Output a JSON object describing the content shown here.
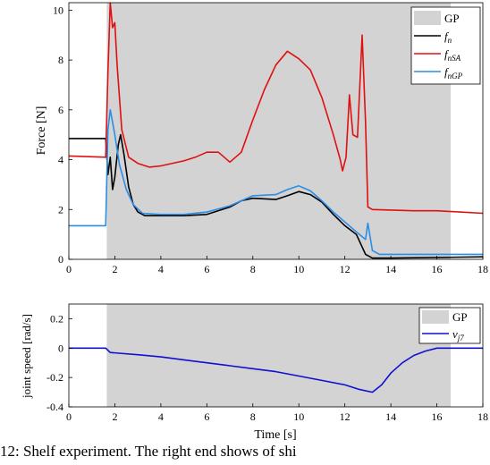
{
  "caption": "12: Shelf experiment. The right end shows of shi",
  "chart_data": [
    {
      "type": "line",
      "title": "",
      "xlabel": "",
      "ylabel": "Force [N]",
      "xlim": [
        0,
        18
      ],
      "ylim": [
        0,
        10.3
      ],
      "xticks": [
        "0",
        "2",
        "4",
        "6",
        "8",
        "10",
        "12",
        "14",
        "16",
        "18"
      ],
      "yticks": [
        "0",
        "2",
        "4",
        "6",
        "8",
        "10"
      ],
      "grid": false,
      "legend_position": "top-right",
      "shaded_region": {
        "label": "GP",
        "x_start": 1.65,
        "x_end": 16.6,
        "color": "#d3d3d3"
      },
      "series": [
        {
          "name": "f_n",
          "label_main": "f",
          "label_sub": "n",
          "color": "#000000",
          "points": [
            [
              0,
              4.85
            ],
            [
              1.6,
              4.85
            ],
            [
              1.7,
              3.4
            ],
            [
              1.8,
              4.1
            ],
            [
              1.9,
              2.8
            ],
            [
              2.0,
              3.3
            ],
            [
              2.15,
              4.6
            ],
            [
              2.25,
              5.0
            ],
            [
              2.4,
              4.2
            ],
            [
              2.6,
              2.9
            ],
            [
              2.8,
              2.2
            ],
            [
              3.0,
              1.9
            ],
            [
              3.3,
              1.75
            ],
            [
              4,
              1.75
            ],
            [
              5,
              1.75
            ],
            [
              6,
              1.8
            ],
            [
              7,
              2.1
            ],
            [
              7.5,
              2.35
            ],
            [
              8,
              2.45
            ],
            [
              9,
              2.4
            ],
            [
              9.5,
              2.55
            ],
            [
              10,
              2.72
            ],
            [
              10.5,
              2.6
            ],
            [
              11,
              2.3
            ],
            [
              11.5,
              1.8
            ],
            [
              12,
              1.35
            ],
            [
              12.5,
              1.0
            ],
            [
              12.9,
              0.2
            ],
            [
              13.2,
              0.05
            ],
            [
              14,
              0.05
            ],
            [
              18,
              0.1
            ]
          ]
        },
        {
          "name": "f_nSA",
          "label_main": "f",
          "label_sub": "nSA",
          "color": "#e01010",
          "points": [
            [
              0,
              4.15
            ],
            [
              1.6,
              4.1
            ],
            [
              1.7,
              7.5
            ],
            [
              1.8,
              10.3
            ],
            [
              1.9,
              9.3
            ],
            [
              2.0,
              9.5
            ],
            [
              2.1,
              7.8
            ],
            [
              2.3,
              5.2
            ],
            [
              2.6,
              4.1
            ],
            [
              3.0,
              3.85
            ],
            [
              3.5,
              3.7
            ],
            [
              4,
              3.75
            ],
            [
              5,
              3.95
            ],
            [
              5.5,
              4.1
            ],
            [
              6,
              4.3
            ],
            [
              6.5,
              4.3
            ],
            [
              7,
              3.9
            ],
            [
              7.5,
              4.3
            ],
            [
              8,
              5.6
            ],
            [
              8.5,
              6.8
            ],
            [
              9,
              7.8
            ],
            [
              9.5,
              8.35
            ],
            [
              10,
              8.05
            ],
            [
              10.5,
              7.6
            ],
            [
              11,
              6.5
            ],
            [
              11.5,
              5.0
            ],
            [
              11.8,
              4.0
            ],
            [
              11.9,
              3.55
            ],
            [
              12.05,
              4.1
            ],
            [
              12.2,
              6.6
            ],
            [
              12.35,
              5.0
            ],
            [
              12.55,
              4.9
            ],
            [
              12.75,
              9.0
            ],
            [
              12.9,
              5.5
            ],
            [
              13.0,
              2.1
            ],
            [
              13.2,
              2.0
            ],
            [
              15,
              1.95
            ],
            [
              16,
              1.95
            ],
            [
              17,
              1.9
            ],
            [
              18,
              1.85
            ]
          ]
        },
        {
          "name": "f_nGP",
          "label_main": "f",
          "label_sub": "nGP",
          "color": "#2b8ee6",
          "points": [
            [
              0,
              1.35
            ],
            [
              1.6,
              1.35
            ],
            [
              1.7,
              5.2
            ],
            [
              1.8,
              6.0
            ],
            [
              1.9,
              5.5
            ],
            [
              2.0,
              5.0
            ],
            [
              2.2,
              3.8
            ],
            [
              2.5,
              2.8
            ],
            [
              2.8,
              2.2
            ],
            [
              3.2,
              1.85
            ],
            [
              4,
              1.8
            ],
            [
              5,
              1.8
            ],
            [
              6,
              1.9
            ],
            [
              7,
              2.15
            ],
            [
              8,
              2.55
            ],
            [
              9,
              2.6
            ],
            [
              9.5,
              2.8
            ],
            [
              10,
              2.95
            ],
            [
              10.5,
              2.75
            ],
            [
              11,
              2.35
            ],
            [
              11.5,
              1.9
            ],
            [
              12,
              1.5
            ],
            [
              12.5,
              1.1
            ],
            [
              12.9,
              0.8
            ],
            [
              13.0,
              1.45
            ],
            [
              13.2,
              0.35
            ],
            [
              13.5,
              0.2
            ],
            [
              16,
              0.2
            ],
            [
              18,
              0.2
            ]
          ]
        }
      ]
    },
    {
      "type": "line",
      "title": "",
      "xlabel": "Time [s]",
      "ylabel": "joint speed [rad/s]",
      "xlim": [
        0,
        18
      ],
      "ylim": [
        -0.4,
        0.3
      ],
      "xticks": [
        "0",
        "2",
        "4",
        "6",
        "8",
        "10",
        "12",
        "14",
        "16",
        "18"
      ],
      "yticks": [
        "-0.4",
        "-0.2",
        "0",
        "0.2"
      ],
      "grid": false,
      "legend_position": "top-right",
      "shaded_region": {
        "label": "GP",
        "x_start": 1.65,
        "x_end": 16.6,
        "color": "#d3d3d3"
      },
      "series": [
        {
          "name": "v_j7",
          "label_main": "v",
          "label_sub": "j7",
          "color": "#1010d0",
          "points": [
            [
              0,
              0
            ],
            [
              1.6,
              0
            ],
            [
              1.8,
              -0.03
            ],
            [
              3,
              -0.045
            ],
            [
              4,
              -0.06
            ],
            [
              5,
              -0.08
            ],
            [
              6,
              -0.1
            ],
            [
              7,
              -0.12
            ],
            [
              8,
              -0.14
            ],
            [
              9,
              -0.16
            ],
            [
              10,
              -0.19
            ],
            [
              11,
              -0.22
            ],
            [
              12,
              -0.25
            ],
            [
              12.6,
              -0.28
            ],
            [
              13.2,
              -0.3
            ],
            [
              13.6,
              -0.25
            ],
            [
              14,
              -0.17
            ],
            [
              14.5,
              -0.1
            ],
            [
              15,
              -0.05
            ],
            [
              15.5,
              -0.02
            ],
            [
              16,
              0
            ],
            [
              18,
              0
            ]
          ]
        }
      ]
    }
  ]
}
